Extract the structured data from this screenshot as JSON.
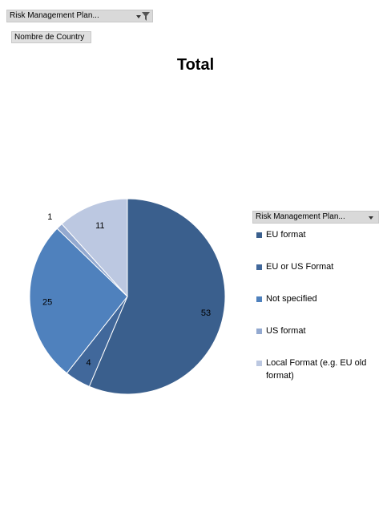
{
  "filter_field": {
    "label": "Risk Management Plan...",
    "icon": "filter-funnel-icon"
  },
  "value_field": {
    "label": "Nombre de Country"
  },
  "legend_field": {
    "label": "Risk Management Plan..."
  },
  "chart_data": {
    "type": "pie",
    "title": "Total",
    "categories": [
      "EU format",
      "EU or US Format",
      "Not specified",
      "US format",
      "Local Format (e.g. EU old format)"
    ],
    "values": [
      53,
      4,
      25,
      1,
      11
    ],
    "colors": [
      "#3a5f8d",
      "#41689b",
      "#4f81bd",
      "#93a9d0",
      "#bcc8e1"
    ],
    "legend_position": "right"
  }
}
